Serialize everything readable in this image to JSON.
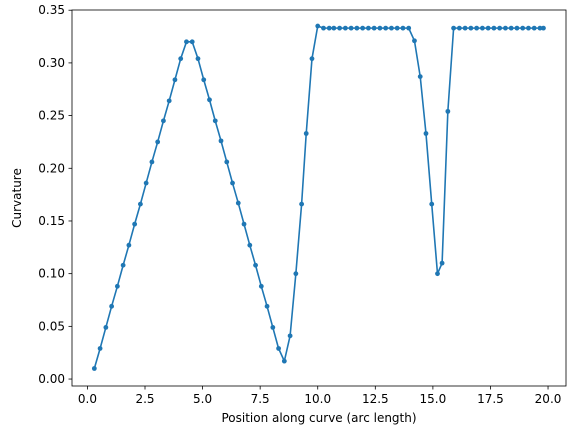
{
  "chart_data": {
    "type": "line",
    "title": "",
    "xlabel": "Position along curve (arc length)",
    "ylabel": "Curvature",
    "xlim": [
      -0.67,
      20.78
    ],
    "ylim": [
      -0.0066,
      0.3502
    ],
    "xticks": [
      0.0,
      2.5,
      5.0,
      7.5,
      10.0,
      12.5,
      15.0,
      17.5,
      20.0
    ],
    "xtick_labels": [
      "0.0",
      "2.5",
      "5.0",
      "7.5",
      "10.0",
      "12.5",
      "15.0",
      "17.5",
      "20.0"
    ],
    "yticks": [
      0.0,
      0.05,
      0.1,
      0.15,
      0.2,
      0.25,
      0.3,
      0.35
    ],
    "ytick_labels": [
      "0.00",
      "0.05",
      "0.10",
      "0.15",
      "0.20",
      "0.25",
      "0.30",
      "0.35"
    ],
    "grid": false,
    "legend": false,
    "marker": "circle",
    "color": "#1f77b4",
    "series": [
      {
        "x": [
          0.3,
          0.55,
          0.8,
          1.05,
          1.3,
          1.55,
          1.8,
          2.05,
          2.3,
          2.55,
          2.8,
          3.05,
          3.3,
          3.55,
          3.8,
          4.05,
          4.3,
          4.55,
          4.8,
          5.05,
          5.3,
          5.55,
          5.8,
          6.05,
          6.3,
          6.55,
          6.8,
          7.05,
          7.3,
          7.55,
          7.8,
          8.05,
          8.3,
          8.55,
          8.8,
          9.05,
          9.3,
          9.5,
          9.75,
          10.0,
          10.25,
          10.5,
          10.7,
          10.95,
          11.2,
          11.45,
          11.7,
          11.95,
          12.2,
          12.45,
          12.7,
          12.95,
          13.2,
          13.45,
          13.7,
          13.95,
          14.2,
          14.45,
          14.7,
          14.95,
          15.2,
          15.4,
          15.65,
          15.9,
          16.15,
          16.4,
          16.65,
          16.9,
          17.15,
          17.4,
          17.65,
          17.9,
          18.15,
          18.4,
          18.65,
          18.9,
          19.15,
          19.4,
          19.65,
          19.8
        ],
        "y": [
          0.01,
          0.029,
          0.049,
          0.069,
          0.088,
          0.108,
          0.127,
          0.147,
          0.166,
          0.186,
          0.206,
          0.225,
          0.245,
          0.264,
          0.284,
          0.304,
          0.32,
          0.32,
          0.304,
          0.284,
          0.265,
          0.245,
          0.226,
          0.206,
          0.186,
          0.167,
          0.147,
          0.127,
          0.108,
          0.088,
          0.069,
          0.049,
          0.029,
          0.017,
          0.041,
          0.1,
          0.166,
          0.233,
          0.304,
          0.335,
          0.333,
          0.333,
          0.333,
          0.333,
          0.333,
          0.333,
          0.333,
          0.333,
          0.333,
          0.333,
          0.333,
          0.333,
          0.333,
          0.333,
          0.333,
          0.333,
          0.321,
          0.287,
          0.233,
          0.166,
          0.1,
          0.11,
          0.254,
          0.333,
          0.333,
          0.333,
          0.333,
          0.333,
          0.333,
          0.333,
          0.333,
          0.333,
          0.333,
          0.333,
          0.333,
          0.333,
          0.333,
          0.333,
          0.333,
          0.333
        ]
      }
    ]
  }
}
